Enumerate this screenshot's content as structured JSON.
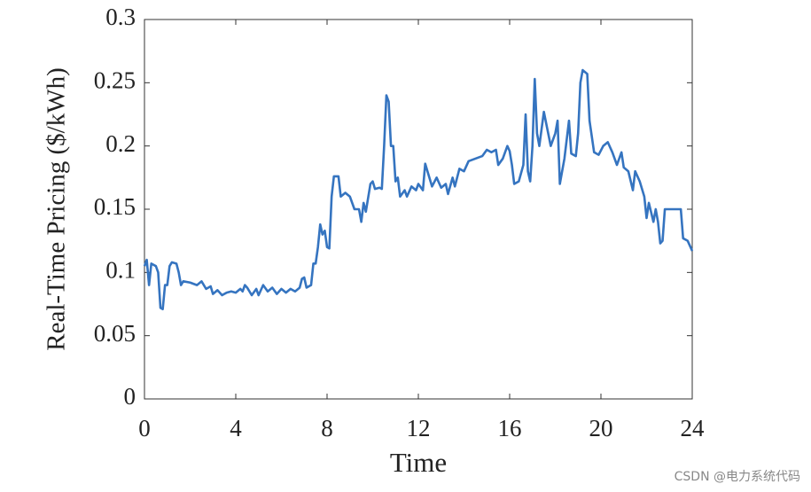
{
  "chart_data": {
    "type": "line",
    "xlabel": "Time",
    "ylabel": "Real-Time Pricing ($/kWh)",
    "watermark": "CSDN @电力系统代码",
    "xlim": [
      0,
      24
    ],
    "xticks": [
      0,
      4,
      8,
      12,
      16,
      20,
      24
    ],
    "ylim": [
      0,
      0.3
    ],
    "yticks": [
      0,
      0.05,
      0.1,
      0.15,
      0.2,
      0.25,
      0.3
    ],
    "grid": false,
    "x": [
      0,
      0.1,
      0.2,
      0.3,
      0.5,
      0.6,
      0.7,
      0.8,
      0.9,
      1.0,
      1.1,
      1.2,
      1.4,
      1.5,
      1.6,
      1.7,
      2.0,
      2.3,
      2.5,
      2.7,
      2.9,
      3.0,
      3.2,
      3.4,
      3.6,
      3.8,
      4.0,
      4.2,
      4.3,
      4.4,
      4.5,
      4.7,
      4.9,
      5.0,
      5.2,
      5.4,
      5.6,
      5.8,
      6.0,
      6.2,
      6.4,
      6.6,
      6.8,
      6.9,
      7.0,
      7.1,
      7.3,
      7.4,
      7.5,
      7.6,
      7.7,
      7.8,
      7.9,
      8.0,
      8.1,
      8.2,
      8.3,
      8.5,
      8.6,
      8.8,
      9.0,
      9.2,
      9.4,
      9.5,
      9.6,
      9.7,
      9.9,
      10.0,
      10.1,
      10.3,
      10.4,
      10.5,
      10.6,
      10.7,
      10.8,
      10.9,
      11.0,
      11.1,
      11.2,
      11.4,
      11.5,
      11.7,
      11.9,
      12.0,
      12.2,
      12.3,
      12.4,
      12.6,
      12.8,
      13.0,
      13.2,
      13.3,
      13.5,
      13.6,
      13.8,
      14.0,
      14.2,
      14.5,
      14.8,
      15.0,
      15.2,
      15.4,
      15.5,
      15.7,
      15.9,
      16.0,
      16.1,
      16.2,
      16.4,
      16.6,
      16.7,
      16.8,
      16.9,
      17.0,
      17.1,
      17.2,
      17.3,
      17.5,
      17.6,
      17.8,
      18.0,
      18.1,
      18.2,
      18.4,
      18.6,
      18.7,
      18.9,
      19.0,
      19.1,
      19.2,
      19.4,
      19.5,
      19.7,
      19.9,
      20.1,
      20.3,
      20.5,
      20.7,
      20.9,
      21.0,
      21.2,
      21.4,
      21.5,
      21.7,
      21.9,
      22.0,
      22.1,
      22.3,
      22.4,
      22.5,
      22.6,
      22.7,
      22.8,
      23.0,
      23.5,
      23.6,
      23.8,
      24.0
    ],
    "series": [
      {
        "color": "#3574c0",
        "values": [
          0.105,
          0.11,
          0.09,
          0.107,
          0.105,
          0.1,
          0.072,
          0.071,
          0.09,
          0.09,
          0.105,
          0.108,
          0.107,
          0.1,
          0.09,
          0.093,
          0.092,
          0.09,
          0.093,
          0.087,
          0.089,
          0.083,
          0.086,
          0.082,
          0.084,
          0.085,
          0.084,
          0.087,
          0.085,
          0.09,
          0.088,
          0.082,
          0.087,
          0.082,
          0.09,
          0.085,
          0.088,
          0.083,
          0.087,
          0.084,
          0.087,
          0.085,
          0.088,
          0.095,
          0.096,
          0.088,
          0.09,
          0.107,
          0.107,
          0.12,
          0.138,
          0.13,
          0.133,
          0.12,
          0.119,
          0.16,
          0.176,
          0.176,
          0.16,
          0.163,
          0.16,
          0.15,
          0.15,
          0.14,
          0.155,
          0.148,
          0.17,
          0.172,
          0.166,
          0.167,
          0.166,
          0.2,
          0.24,
          0.235,
          0.2,
          0.2,
          0.172,
          0.175,
          0.16,
          0.165,
          0.16,
          0.168,
          0.165,
          0.17,
          0.165,
          0.186,
          0.18,
          0.168,
          0.175,
          0.167,
          0.17,
          0.162,
          0.175,
          0.168,
          0.182,
          0.18,
          0.188,
          0.19,
          0.192,
          0.197,
          0.195,
          0.197,
          0.185,
          0.19,
          0.2,
          0.196,
          0.185,
          0.17,
          0.172,
          0.185,
          0.225,
          0.18,
          0.172,
          0.2,
          0.253,
          0.21,
          0.2,
          0.227,
          0.218,
          0.2,
          0.21,
          0.22,
          0.17,
          0.19,
          0.22,
          0.194,
          0.192,
          0.21,
          0.25,
          0.26,
          0.257,
          0.22,
          0.195,
          0.193,
          0.2,
          0.203,
          0.195,
          0.185,
          0.195,
          0.183,
          0.18,
          0.165,
          0.18,
          0.172,
          0.16,
          0.143,
          0.155,
          0.14,
          0.15,
          0.14,
          0.123,
          0.125,
          0.15,
          0.15,
          0.15,
          0.127,
          0.125,
          0.117
        ]
      }
    ]
  }
}
